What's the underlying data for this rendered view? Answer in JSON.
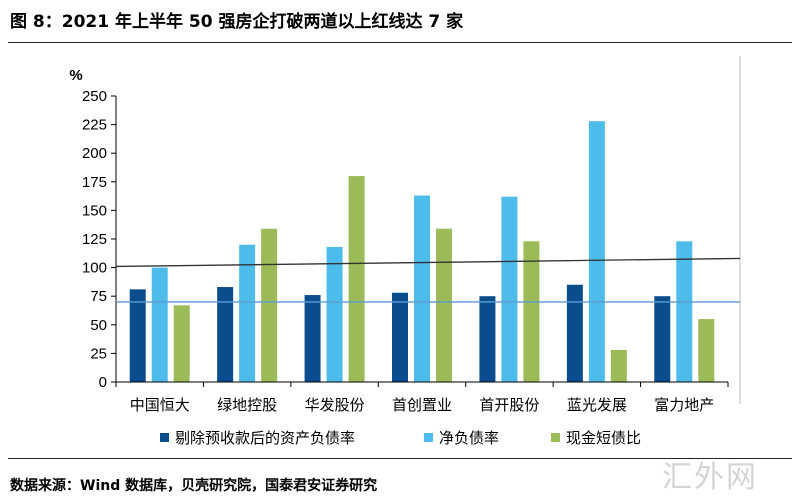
{
  "title": "图 8：2021 年上半年 50 强房企打破两道以上红线达 7 家",
  "source": "数据来源：Wind 数据库，贝壳研究院，国泰君安证券研究",
  "watermark": "汇外网",
  "chart_data": {
    "type": "bar",
    "title": "图 8：2021 年上半年 50 强房企打破两道以上红线达 7 家",
    "ylabel": "%",
    "xlabel": "",
    "ylim": [
      0,
      250
    ],
    "yticks": [
      0,
      25,
      50,
      75,
      100,
      125,
      150,
      175,
      200,
      225,
      250
    ],
    "grid": false,
    "legend_position": "bottom",
    "categories": [
      "中国恒大",
      "绿地控股",
      "华发股份",
      "首创置业",
      "首开股份",
      "蓝光发展",
      "富力地产"
    ],
    "series": [
      {
        "name": "剔除预收款后的资产负债率",
        "color": "#0a4c8c",
        "values": [
          81,
          83,
          76,
          78,
          75,
          85,
          75
        ]
      },
      {
        "name": "净负债率",
        "color": "#4dbcea",
        "values": [
          100,
          120,
          118,
          163,
          162,
          228,
          123
        ]
      },
      {
        "name": "现金短债比",
        "color": "#9bbb59",
        "values": [
          67,
          134,
          180,
          134,
          123,
          28,
          55
        ]
      }
    ],
    "reference_lines": [
      {
        "color": "#333333",
        "values": [
          101,
          108
        ]
      },
      {
        "color": "#5b9bd5",
        "values": [
          70,
          70
        ]
      }
    ]
  }
}
